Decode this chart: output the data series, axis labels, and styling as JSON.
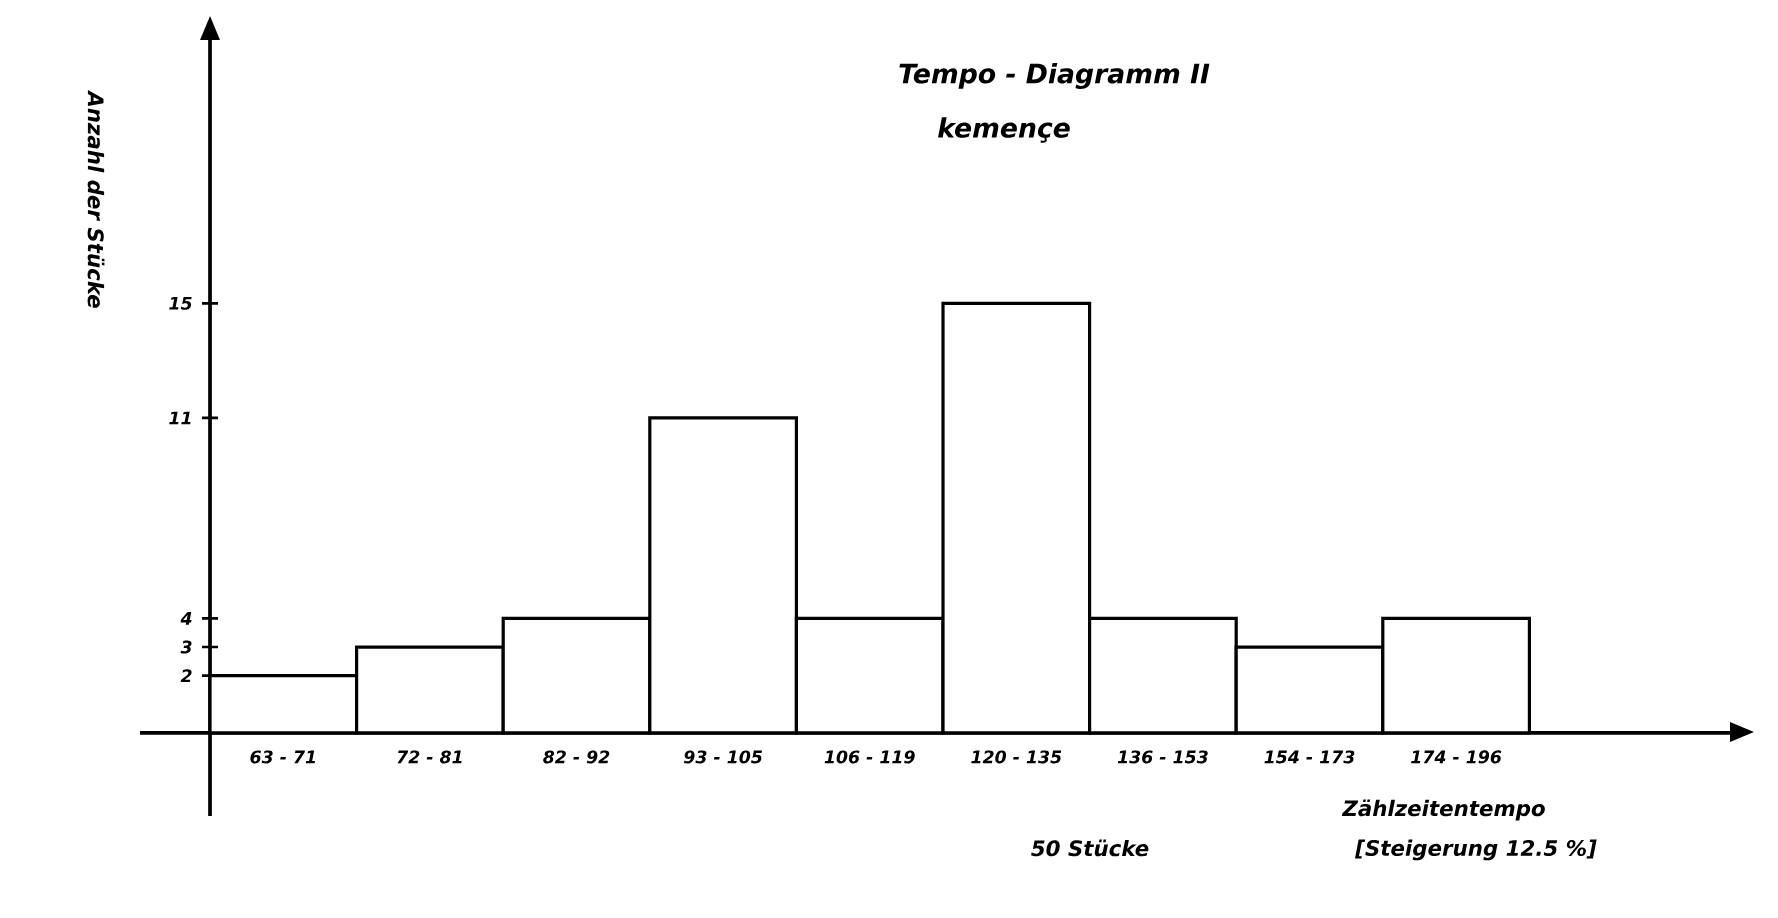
{
  "chart_data": {
    "type": "bar",
    "title": "Tempo - Diagramm II",
    "subtitle": "kemençe",
    "ylabel": "Anzahl der Stücke",
    "xlabel": "Zählzeitentempo",
    "categories": [
      "63 - 71",
      "72 - 81",
      "82 - 92",
      "93 - 105",
      "106 - 119",
      "120 - 135",
      "136 - 153",
      "154 - 173",
      "174 - 196"
    ],
    "values": [
      2,
      3,
      4,
      11,
      4,
      15,
      4,
      3,
      4
    ],
    "color": "#ffffff",
    "ylim": [
      -2.9,
      24.2
    ],
    "yticks": [
      2,
      3,
      4,
      11,
      15
    ],
    "annotations": [
      "50 Stücke",
      "[Steigerung 12.5 %]"
    ]
  }
}
